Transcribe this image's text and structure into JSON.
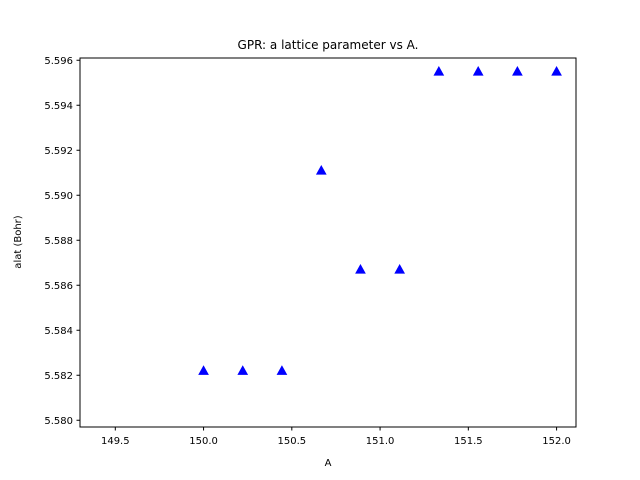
{
  "chart_data": {
    "type": "scatter",
    "title": "GPR: a lattice parameter vs A.",
    "xlabel": "A",
    "ylabel": "alat (Bohr)",
    "xlim": [
      149.3,
      152.11
    ],
    "ylim": [
      5.5797,
      5.5961
    ],
    "xticks": [
      149.5,
      150.0,
      150.5,
      151.0,
      151.5,
      152.0
    ],
    "xtick_labels": [
      "149.5",
      "150.0",
      "150.5",
      "151.0",
      "151.5",
      "152.0"
    ],
    "yticks": [
      5.58,
      5.582,
      5.584,
      5.586,
      5.588,
      5.59,
      5.592,
      5.594,
      5.596
    ],
    "ytick_labels": [
      "5.580",
      "5.582",
      "5.584",
      "5.586",
      "5.588",
      "5.590",
      "5.592",
      "5.594",
      "5.596"
    ],
    "marker": "triangle-up",
    "color": "#0000ff",
    "grid": false,
    "x": [
      150.0,
      150.222,
      150.444,
      150.667,
      150.889,
      151.111,
      151.333,
      151.556,
      151.778,
      152.0
    ],
    "y": [
      5.5822,
      5.5822,
      5.5822,
      5.5911,
      5.5867,
      5.5867,
      5.5955,
      5.5955,
      5.5955,
      5.5955
    ]
  }
}
